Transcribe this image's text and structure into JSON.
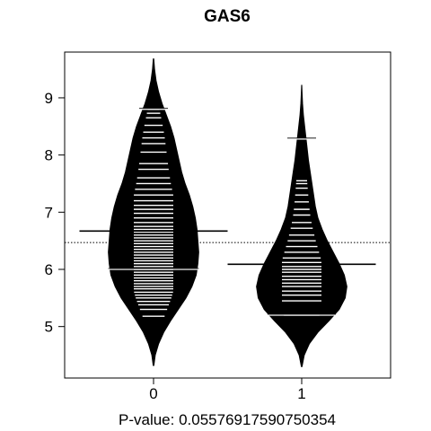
{
  "chart_data": {
    "type": "beanplot",
    "title": "GAS6",
    "caption": "P-value: 0.05576917590750354",
    "categories": [
      "0",
      "1"
    ],
    "x_tick_labels": [
      "0",
      "1"
    ],
    "y_ticks": [
      5,
      6,
      7,
      8,
      9
    ],
    "y_tick_labels": [
      "5",
      "6",
      "7",
      "8",
      "9"
    ],
    "ylim": [
      4.1,
      9.8
    ],
    "xlim": [
      -0.6,
      1.6
    ],
    "overall_mean": 6.47,
    "series": [
      {
        "category": "0",
        "mean": 6.67,
        "density": [
          [
            4.32,
            0.004
          ],
          [
            4.5,
            0.02
          ],
          [
            4.7,
            0.06
          ],
          [
            4.9,
            0.12
          ],
          [
            5.1,
            0.2
          ],
          [
            5.3,
            0.29
          ],
          [
            5.5,
            0.38
          ],
          [
            5.7,
            0.45
          ],
          [
            5.9,
            0.5
          ],
          [
            6.1,
            0.52
          ],
          [
            6.3,
            0.53
          ],
          [
            6.5,
            0.52
          ],
          [
            6.7,
            0.51
          ],
          [
            6.9,
            0.49
          ],
          [
            7.1,
            0.46
          ],
          [
            7.3,
            0.42
          ],
          [
            7.5,
            0.37
          ],
          [
            7.7,
            0.33
          ],
          [
            7.9,
            0.3
          ],
          [
            8.1,
            0.27
          ],
          [
            8.3,
            0.24
          ],
          [
            8.5,
            0.2
          ],
          [
            8.7,
            0.15
          ],
          [
            8.9,
            0.1
          ],
          [
            9.1,
            0.06
          ],
          [
            9.3,
            0.03
          ],
          [
            9.5,
            0.012
          ],
          [
            9.68,
            0.003
          ]
        ],
        "beanlines": [
          5.18,
          5.3,
          5.38,
          5.44,
          5.5,
          5.55,
          5.6,
          5.66,
          5.7,
          5.75,
          5.8,
          5.85,
          5.9,
          5.95,
          6.0,
          6.05,
          6.1,
          6.15,
          6.2,
          6.25,
          6.3,
          6.35,
          6.4,
          6.45,
          6.5,
          6.55,
          6.6,
          6.65,
          6.7,
          6.75,
          6.82,
          6.9,
          6.98,
          7.05,
          7.12,
          7.2,
          7.3,
          7.4,
          7.5,
          7.6,
          7.75,
          7.85,
          8.05,
          8.2,
          8.3,
          8.4,
          8.52,
          8.65,
          8.73,
          8.8
        ],
        "long_lines": [
          6.0,
          8.8
        ]
      },
      {
        "category": "1",
        "mean": 6.09,
        "density": [
          [
            4.3,
            0.004
          ],
          [
            4.5,
            0.03
          ],
          [
            4.7,
            0.09
          ],
          [
            4.9,
            0.19
          ],
          [
            5.1,
            0.32
          ],
          [
            5.3,
            0.44
          ],
          [
            5.5,
            0.51
          ],
          [
            5.7,
            0.53
          ],
          [
            5.9,
            0.5
          ],
          [
            6.1,
            0.44
          ],
          [
            6.3,
            0.37
          ],
          [
            6.5,
            0.3
          ],
          [
            6.7,
            0.24
          ],
          [
            6.9,
            0.19
          ],
          [
            7.1,
            0.16
          ],
          [
            7.3,
            0.14
          ],
          [
            7.5,
            0.12
          ],
          [
            7.7,
            0.1
          ],
          [
            7.9,
            0.08
          ],
          [
            8.1,
            0.065
          ],
          [
            8.3,
            0.05
          ],
          [
            8.5,
            0.035
          ],
          [
            8.7,
            0.02
          ],
          [
            8.9,
            0.01
          ],
          [
            9.1,
            0.004
          ],
          [
            9.22,
            0.001
          ]
        ],
        "beanlines": [
          5.2,
          5.45,
          5.55,
          5.62,
          5.7,
          5.76,
          5.82,
          5.88,
          5.95,
          6.0,
          6.05,
          6.12,
          6.2,
          6.3,
          6.4,
          6.5,
          6.6,
          6.72,
          6.82,
          6.95,
          7.05,
          7.18,
          7.3,
          7.42,
          7.5,
          7.55,
          8.28
        ],
        "long_lines": [
          5.2,
          8.28
        ]
      }
    ]
  }
}
